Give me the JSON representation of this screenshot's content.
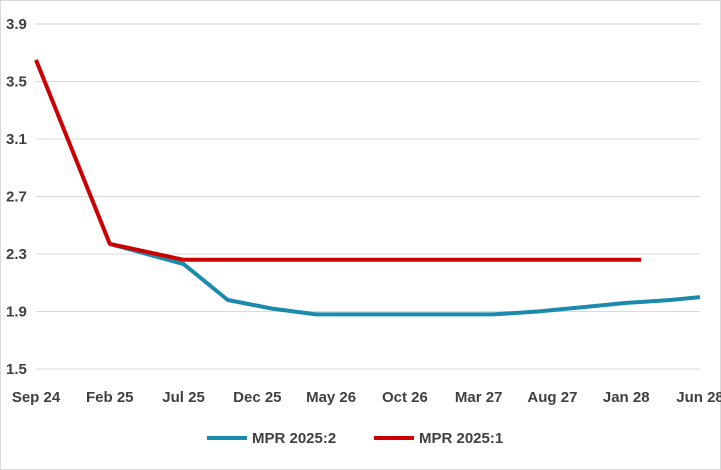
{
  "chart_data": {
    "type": "line",
    "title": "",
    "xlabel": "",
    "ylabel": "",
    "x_tick_labels": [
      "Sep 24",
      "Feb 25",
      "Jul 25",
      "Dec 25",
      "May 26",
      "Oct 26",
      "Mar 27",
      "Aug 27",
      "Jan 28",
      "Jun 28"
    ],
    "ylim": [
      1.5,
      3.9
    ],
    "y_ticks": [
      1.5,
      1.9,
      2.3,
      2.7,
      3.1,
      3.5,
      3.9
    ],
    "y_tick_labels": [
      "1.5",
      "1.9",
      "2.3",
      "2.7",
      "3.1",
      "3.5",
      "3.9"
    ],
    "grid": "horizontal",
    "legend_position": "bottom",
    "x_start": "Sep 24",
    "x_end": "Jun 28",
    "series": [
      {
        "name": "MPR 2025:2",
        "color": "#1a8aad",
        "points": [
          {
            "x": "Feb 25",
            "y": 2.37
          },
          {
            "x": "Jul 25",
            "y": 2.23
          },
          {
            "x": "Oct 25",
            "y": 1.98
          },
          {
            "x": "Jan 26",
            "y": 1.92
          },
          {
            "x": "Apr 26",
            "y": 1.88
          },
          {
            "x": "Jul 26",
            "y": 1.88
          },
          {
            "x": "Oct 26",
            "y": 1.88
          },
          {
            "x": "Jan 27",
            "y": 1.88
          },
          {
            "x": "Apr 27",
            "y": 1.88
          },
          {
            "x": "Jul 27",
            "y": 1.9
          },
          {
            "x": "Oct 27",
            "y": 1.93
          },
          {
            "x": "Jan 28",
            "y": 1.96
          },
          {
            "x": "Apr 28",
            "y": 1.98
          },
          {
            "x": "Jun 28",
            "y": 2.0
          }
        ]
      },
      {
        "name": "MPR 2025:1",
        "color": "#cc0000",
        "points": [
          {
            "x": "Sep 24",
            "y": 3.65
          },
          {
            "x": "Feb 25",
            "y": 2.37
          },
          {
            "x": "Jul 25",
            "y": 2.26
          },
          {
            "x": "Feb 28",
            "y": 2.26
          }
        ]
      }
    ]
  }
}
